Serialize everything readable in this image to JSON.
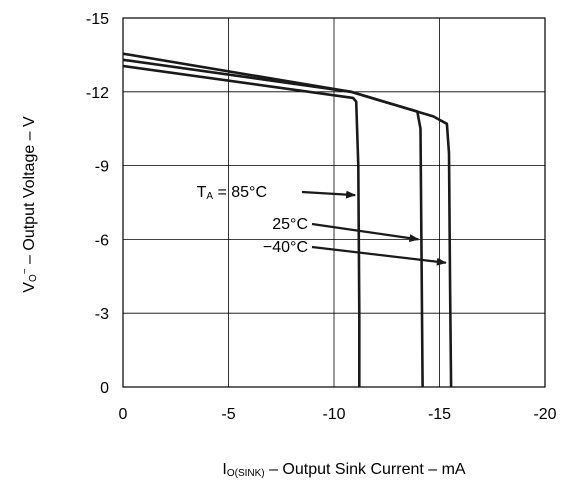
{
  "chart_data": {
    "type": "line",
    "xlabel": {
      "prefix": "I",
      "subscript": "O(SINK)",
      "rest": " – Output Sink Current – mA"
    },
    "ylabel": {
      "prefix": "V",
      "subscript": "O",
      "superscript": "−",
      "rest": " – Output Voltage – V"
    },
    "xlim": [
      0,
      -20
    ],
    "ylim": [
      0,
      -15
    ],
    "x_ticks": [
      0,
      -5,
      -10,
      -15,
      -20
    ],
    "x_tick_labels": [
      "0",
      "-5",
      "-10",
      "-15",
      "-20"
    ],
    "y_ticks": [
      0,
      -3,
      -6,
      -9,
      -12,
      -15
    ],
    "y_tick_labels": [
      "0",
      "-3",
      "-6",
      "-9",
      "-12",
      "-15"
    ],
    "grid": true,
    "line_color": "#1a1a1a",
    "series": [
      {
        "name": "85°C",
        "points": [
          [
            0,
            -13.05
          ],
          [
            -10.9,
            -11.75
          ],
          [
            -11.05,
            -11.6
          ],
          [
            -11.15,
            -9
          ],
          [
            -11.2,
            -3
          ],
          [
            -11.2,
            0
          ]
        ]
      },
      {
        "name": "25°C",
        "points": [
          [
            0,
            -13.3
          ],
          [
            -10.8,
            -12.0
          ],
          [
            -13.95,
            -11.2
          ],
          [
            -14.1,
            -10.5
          ],
          [
            -14.15,
            -5
          ],
          [
            -14.2,
            0
          ]
        ]
      },
      {
        "name": "−40°C",
        "points": [
          [
            0,
            -13.55
          ],
          [
            -10.8,
            -12.0
          ],
          [
            -14.7,
            -11.0
          ],
          [
            -15.35,
            -10.7
          ],
          [
            -15.45,
            -9.5
          ],
          [
            -15.5,
            -4
          ],
          [
            -15.55,
            0
          ]
        ]
      }
    ],
    "annotations": [
      {
        "label_prefix": "T",
        "label_subscript": "A",
        "label_rest": " = 85°C",
        "arrow_to": [
          -11.0,
          -7.8
        ]
      },
      {
        "label_prefix": "",
        "label_subscript": "",
        "label_rest": "25°C",
        "arrow_to": [
          -14.0,
          -6.0
        ]
      },
      {
        "label_prefix": "",
        "label_subscript": "",
        "label_rest": "−40°C",
        "arrow_to": [
          -15.3,
          -5.05
        ]
      }
    ]
  }
}
